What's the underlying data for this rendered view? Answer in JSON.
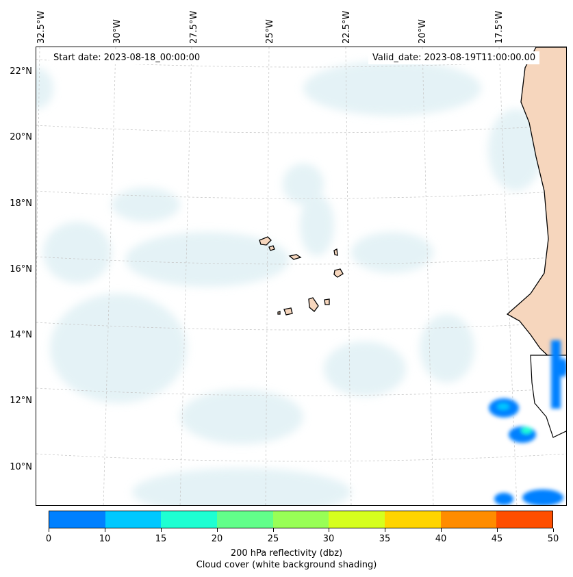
{
  "map": {
    "start_date": "Start date: 2023-08-18_00:00:00",
    "valid_date": "Valid_date: 2023-08-19T11:00:00.00",
    "lon_labels": [
      "32.5°W",
      "30°W",
      "27.5°W",
      "25°W",
      "22.5°W",
      "20°W",
      "17.5°W"
    ],
    "lat_labels": [
      "22°N",
      "20°N",
      "18°N",
      "16°N",
      "14°N",
      "12°N",
      "10°N"
    ],
    "gridlines": true,
    "land_color": "#f6d6bd",
    "cloud_color": "#cfe8ef"
  },
  "colorbar": {
    "label_line1": "200 hPa reflectivity (dbz)",
    "label_line2": "Cloud cover (white background shading)",
    "ticks": [
      "0",
      "10",
      "15",
      "20",
      "25",
      "30",
      "35",
      "40",
      "45",
      "50"
    ],
    "colors": [
      "#0080ff",
      "#00c8ff",
      "#1effd2",
      "#62ff8a",
      "#98ff56",
      "#d6ff1e",
      "#ffd400",
      "#ff8c00",
      "#ff4e00"
    ]
  }
}
